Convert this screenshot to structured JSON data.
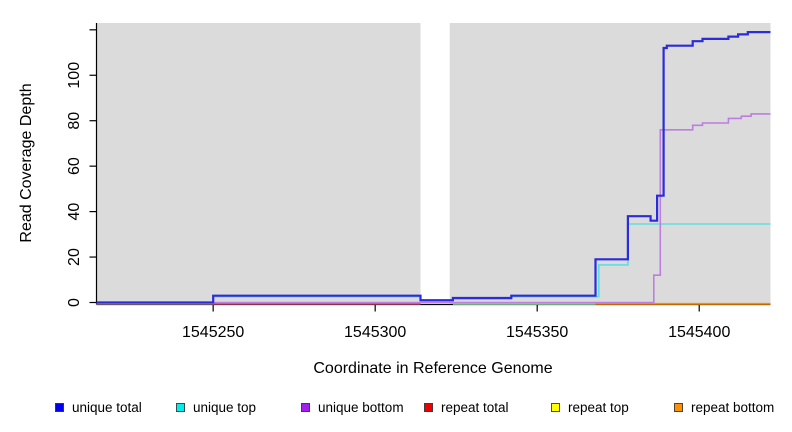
{
  "chart_data": {
    "type": "line",
    "subtype": "step-coverage",
    "title": "",
    "xlabel": "Coordinate in Reference Genome",
    "ylabel": "Read Coverage Depth",
    "xlim": [
      1545214,
      1545422
    ],
    "ylim": [
      0,
      123
    ],
    "x_ticks": [
      1545250,
      1545300,
      1545350,
      1545400
    ],
    "y_ticks": [
      0,
      20,
      40,
      60,
      80,
      100
    ],
    "y_ticks_unlabeled": [
      120
    ],
    "grid": false,
    "panel_bg": "#dbdbdb",
    "axis_color": "#000000",
    "masked_region": {
      "x0": 1545314,
      "x1": 1545323,
      "color": "#ffffff"
    },
    "legend_position": "bottom",
    "series": [
      {
        "name": "unique total",
        "legend_color": "#0000ee",
        "line_color": "#2b2bdc",
        "line_width": 2.2,
        "z": 6,
        "x_end": 1545422,
        "steps": [
          [
            1545214,
            0
          ],
          [
            1545250,
            3
          ],
          [
            1545314,
            1
          ],
          [
            1545324,
            2
          ],
          [
            1545342,
            3
          ],
          [
            1545368,
            19
          ],
          [
            1545378,
            38
          ],
          [
            1545385,
            36
          ],
          [
            1545387,
            47
          ],
          [
            1545389,
            112
          ],
          [
            1545390,
            113
          ],
          [
            1545398,
            115
          ],
          [
            1545401,
            116
          ],
          [
            1545409,
            117
          ],
          [
            1545412,
            118
          ],
          [
            1545415,
            119
          ]
        ]
      },
      {
        "name": "unique top",
        "legend_color": "#00eeee",
        "line_color": "#5fdede",
        "line_width": 1.6,
        "z": 4,
        "x_end": 1545422,
        "steps": [
          [
            1545214,
            0
          ],
          [
            1545250,
            3
          ],
          [
            1545314,
            1
          ],
          [
            1545324,
            2
          ],
          [
            1545342,
            3
          ],
          [
            1545369,
            17
          ],
          [
            1545378,
            35
          ]
        ]
      },
      {
        "name": "unique bottom",
        "legend_color": "#a020f0",
        "line_color": "#bd7ee0",
        "line_width": 1.6,
        "z": 5,
        "x_end": 1545422,
        "steps": [
          [
            1545214,
            0
          ],
          [
            1545386,
            12
          ],
          [
            1545388,
            76
          ],
          [
            1545398,
            78
          ],
          [
            1545401,
            79
          ],
          [
            1545409,
            81
          ],
          [
            1545413,
            82
          ],
          [
            1545416,
            83
          ]
        ]
      },
      {
        "name": "repeat total",
        "legend_color": "#ee0000",
        "line_color": "#e0506e",
        "line_width": 1.6,
        "z": 1,
        "x_end": 1545314,
        "steps": [
          [
            1545214,
            0
          ]
        ]
      },
      {
        "name": "repeat top",
        "legend_color": "#ffff00",
        "line_color": "#7cc882",
        "line_width": 1.6,
        "z": 2,
        "x_end": 1545368,
        "steps": [
          [
            1545324,
            0
          ]
        ]
      },
      {
        "name": "repeat bottom",
        "legend_color": "#ff9100",
        "line_color": "#ff8c00",
        "line_width": 1.8,
        "z": 3,
        "x_end": 1545422,
        "steps": [
          [
            1545368,
            0
          ]
        ]
      }
    ]
  }
}
